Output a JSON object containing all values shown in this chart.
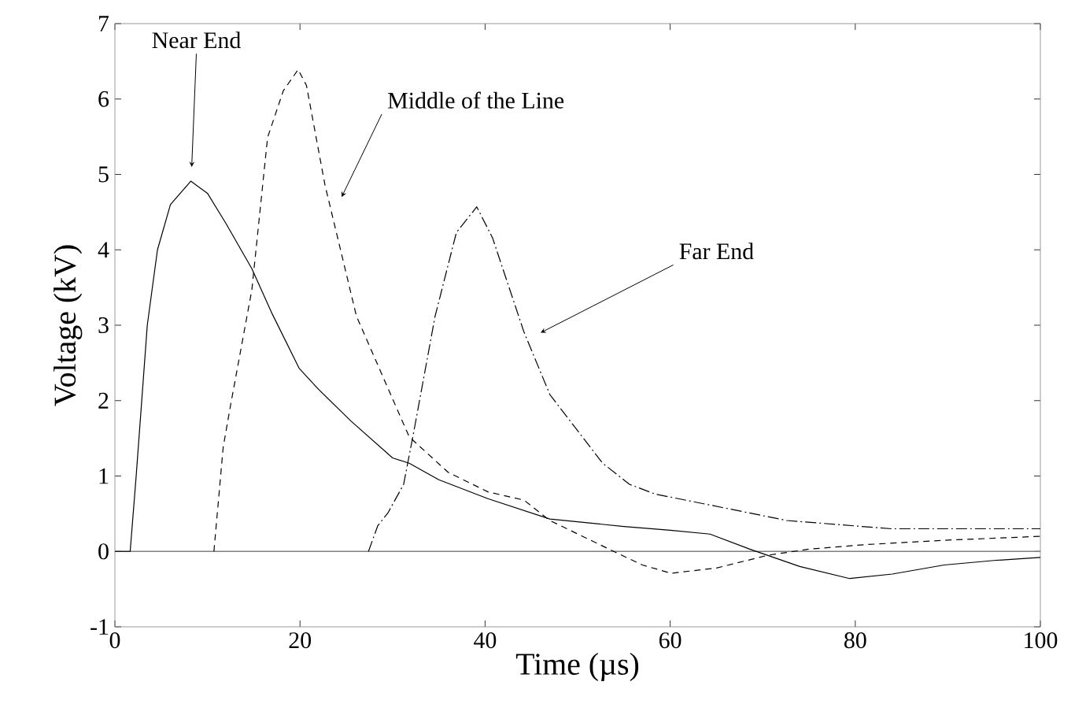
{
  "chart_data": {
    "type": "line",
    "xlabel": "Time (µs)",
    "ylabel": "Voltage (kV)",
    "xlim": [
      0,
      100
    ],
    "ylim": [
      -1,
      7
    ],
    "xticks": [
      0,
      20,
      40,
      60,
      80,
      100
    ],
    "yticks": [
      -1,
      0,
      1,
      2,
      3,
      4,
      5,
      6,
      7
    ],
    "grid": false,
    "marker": "none",
    "series": [
      {
        "color": "#000000",
        "line_style": "solid",
        "x": [
          0,
          1.65,
          2.3,
          3.5,
          4.6,
          6,
          8.2,
          10,
          12,
          14.8,
          17,
          19.9,
          22,
          25.5,
          30,
          31.8,
          35,
          40.3,
          47,
          55,
          60,
          64.3,
          68.6,
          74,
          79.4,
          84,
          89.6,
          95,
          100
        ],
        "values": [
          0,
          0,
          1,
          3,
          4,
          4.6,
          4.91,
          4.75,
          4.35,
          3.75,
          3.15,
          2.43,
          2.15,
          1.73,
          1.24,
          1.17,
          0.95,
          0.7,
          0.43,
          0.33,
          0.28,
          0.23,
          0.03,
          -0.2,
          -0.36,
          -0.3,
          -0.18,
          -0.12,
          -0.08
        ]
      },
      {
        "color": "#000000",
        "line_style": "dashed",
        "x": [
          10.7,
          11.7,
          12.5,
          14.8,
          16.5,
          18.2,
          19.8,
          20.7,
          22.7,
          26.1,
          31.8,
          36,
          40.3,
          44.2,
          47,
          53.9,
          57,
          60.1,
          65,
          70.6,
          75,
          81.1,
          90,
          100
        ],
        "values": [
          0,
          1.38,
          1.94,
          3.47,
          5.49,
          6.11,
          6.39,
          6.18,
          4.86,
          3.12,
          1.52,
          1.05,
          0.79,
          0.68,
          0.41,
          0,
          -0.18,
          -0.29,
          -0.22,
          -0.05,
          0.03,
          0.09,
          0.15,
          0.2
        ]
      },
      {
        "color": "#000000",
        "line_style": "dashdot",
        "x": [
          27.4,
          28.4,
          29.5,
          31.2,
          32.3,
          34.6,
          36.9,
          39.1,
          40.8,
          44.2,
          47,
          52.7,
          55.6,
          58.4,
          64.1,
          72.6,
          83.9,
          100
        ],
        "values": [
          0,
          0.34,
          0.51,
          0.89,
          1.59,
          3.12,
          4.23,
          4.57,
          4.16,
          2.91,
          2.08,
          1.17,
          0.89,
          0.76,
          0.62,
          0.41,
          0.3,
          0.3
        ]
      }
    ],
    "ref_lines": [
      {
        "axis": "y",
        "value": 0,
        "color": "#808080"
      }
    ],
    "annotations": [
      {
        "text": "Near End",
        "x": 8.3,
        "y": 5.1
      },
      {
        "text": "Middle of the Line",
        "x": 24.5,
        "y": 4.7
      },
      {
        "text": "Far End",
        "x": 46,
        "y": 2.9
      }
    ]
  }
}
